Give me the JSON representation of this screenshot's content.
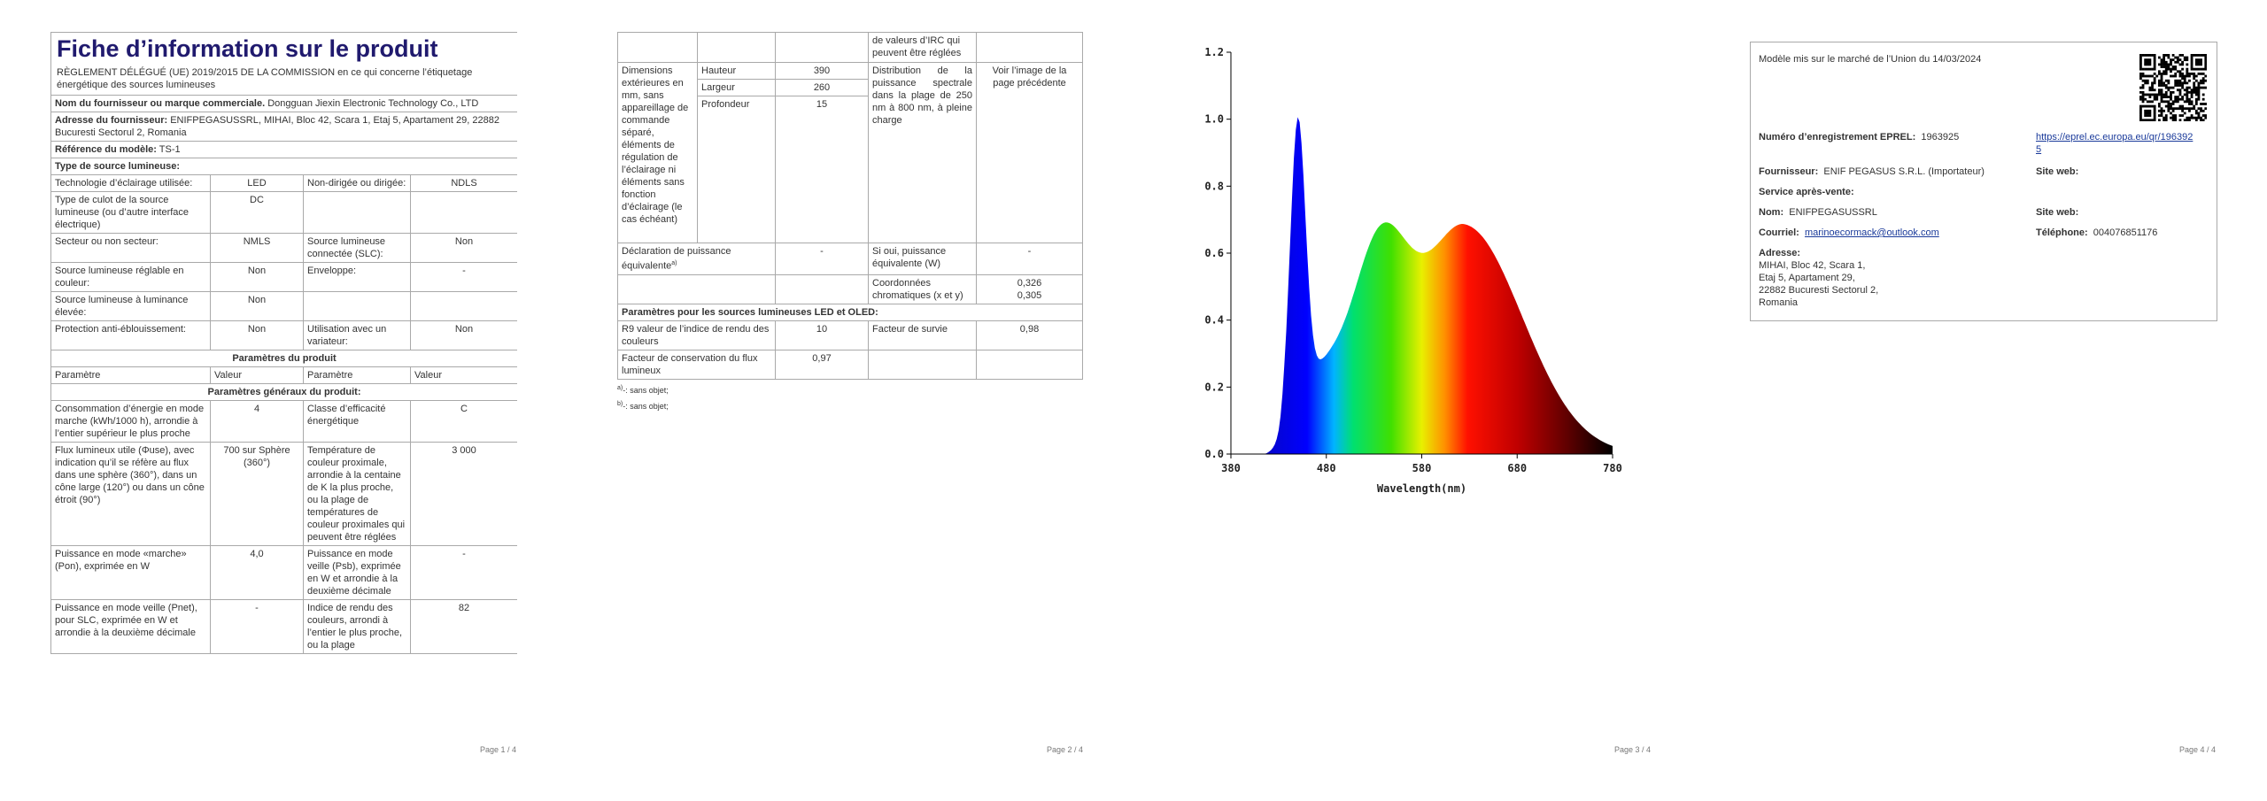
{
  "page1": {
    "title": "Fiche d’information sur le produit",
    "subtitle": "RÈGLEMENT DÉLÉGUÉ (UE) 2019/2015 DE LA COMMISSION en ce qui concerne l’étiquetage énergétique des sources lumineuses",
    "supplier": {
      "label": "Nom du fournisseur ou marque commerciale.",
      "value": "Dongguan Jiexin Electronic Technology Co., LTD"
    },
    "address": {
      "label": "Adresse du fournisseur:",
      "value": "ENIFPEGASUSSRL, MIHAI, Bloc 42, Scara 1, Etaj 5, Apartament 29, 22882 Bucuresti Sectorul 2, Romania"
    },
    "model": {
      "label": "Référence du modèle:",
      "value": "TS-1"
    },
    "type_heading": "Type de source lumineuse:",
    "type_rows": [
      [
        "Technologie d’éclairage utilisée:",
        "LED",
        "Non-dirigée ou dirigée:",
        "NDLS"
      ],
      [
        "Type de culot de la source lumineuse (ou d’autre interface électrique)",
        "DC"
      ],
      [
        "Secteur ou non secteur:",
        "NMLS",
        "Source lumineuse connectée (SLC):",
        "Non"
      ],
      [
        "Source lumineuse réglable en couleur:",
        "Non",
        "Enveloppe:",
        "-"
      ],
      [
        "Source lumineuse à luminance élevée:",
        "Non"
      ],
      [
        "Protection anti-éblouissement:",
        "Non",
        "Utilisation avec un variateur:",
        "Non"
      ]
    ],
    "params_heading": "Paramètres du produit",
    "param_header": [
      "Paramètre",
      "Valeur",
      "Paramètre",
      "Valeur"
    ],
    "general_heading": "Paramètres généraux du produit:",
    "general_rows": [
      [
        "Consommation d’énergie en mode marche (kWh/1000 h), arrondie à l’entier supérieur le plus proche",
        "4",
        "Classe d’efficacité énergétique",
        "C"
      ],
      [
        "Flux lumineux utile (Φuse), avec indication qu’il se réfère au flux dans une sphère (360°), dans un cône large (120°) ou dans un cône étroit (90°)",
        "700 sur Sphère (360°)",
        "Température de couleur proximale, arrondie à la centaine de K la plus proche, ou la plage de températures de couleur proximales qui peuvent être réglées",
        "3 000"
      ],
      [
        "Puissance en mode «marche» (Pon), exprimée en W",
        "4,0",
        "Puissance en mode veille (Psb), exprimée en W et arrondie à la deuxième décimale",
        "-"
      ],
      [
        "Puissance en mode veille (Pnet), pour SLC, exprimée en W et arrondie à la deuxième décimale",
        "-",
        "Indice de rendu des couleurs, arrondi à l’entier le plus proche, ou la plage",
        "82"
      ]
    ],
    "footer": "Page 1 / 4"
  },
  "page2": {
    "cont_row": "de valeurs d’IRC qui peuvent être réglées",
    "dimensions": {
      "label": "Dimensions extérieures en mm, sans appareillage de commande séparé, éléments de régulation de l’éclairage ni éléments sans fonction d’éclairage (le cas échéant)",
      "rows": [
        [
          "Hauteur",
          "390"
        ],
        [
          "Largeur",
          "260"
        ],
        [
          "Profondeur",
          "15"
        ]
      ]
    },
    "spectral": {
      "label": "Distribution de la puissance spectrale dans la plage de 250 nm à 800 nm, à pleine charge",
      "value": "Voir l’image de la page précédente"
    },
    "equiv": {
      "label": "Déclaration de puissance équivalente",
      "note": "a)",
      "value": "-",
      "q_label": "Si oui, puissance équivalente (W)",
      "q_value": "-"
    },
    "chroma": {
      "label": "Coordonnées chromatiques (x et y)",
      "values": [
        "0,326",
        "0,305"
      ]
    },
    "led_heading": "Paramètres pour les sources lumineuses LED et OLED:",
    "led_rows": [
      [
        "R9 valeur de l’indice de rendu des couleurs",
        "10",
        "Facteur de survie",
        "0,98"
      ],
      [
        "Facteur de conservation du flux lumineux",
        "0,97"
      ]
    ],
    "notes": [
      {
        "mark": "a)",
        "text": "-: sans objet;"
      },
      {
        "mark": "b)",
        "text": "-: sans objet;"
      }
    ],
    "footer": "Page 2 / 4"
  },
  "page3": {
    "spectrum": {
      "yticks": [
        "0.0",
        "0.2",
        "0.4",
        "0.6",
        "0.8",
        "1.0",
        "1.2"
      ],
      "xticks": [
        "380",
        "480",
        "580",
        "680",
        "780"
      ],
      "xlabel": "Wavelength(nm)"
    },
    "footer": "Page 3 / 4"
  },
  "page4": {
    "placed": "Modèle mis sur le marché de l’Union du 14/03/2024",
    "eprel": {
      "label": "Numéro d’enregistrement EPREL:",
      "value": "1963925",
      "link": "https://eprel.ec.europa.eu/qr/1963925"
    },
    "supplier": {
      "label": "Fournisseur:",
      "value": "ENIF PEGASUS S.R.L. (Importateur)"
    },
    "site_web": "Site web:",
    "service": "Service après-vente:",
    "name": {
      "label": "Nom:",
      "value": "ENIFPEGASUSSRL"
    },
    "site_web2": "Site web:",
    "email": {
      "label": "Courriel:",
      "value": "marinoecormack@outlook.com"
    },
    "phone": {
      "label": "Téléphone:",
      "value": "004076851176"
    },
    "address": {
      "label": "Adresse:",
      "lines": [
        "MIHAI, Bloc 42, Scara 1,",
        "Etaj 5, Apartament 29,",
        "22882 Bucuresti Sectorul 2,",
        "Romania"
      ]
    },
    "footer": "Page 4 / 4"
  }
}
